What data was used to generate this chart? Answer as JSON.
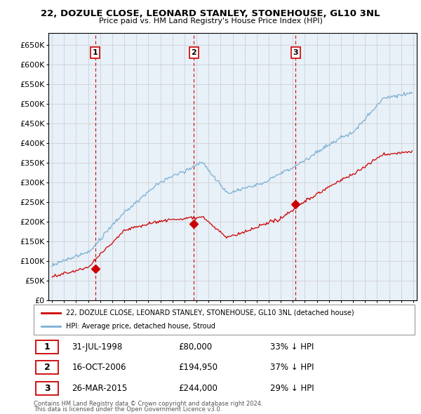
{
  "title": "22, DOZULE CLOSE, LEONARD STANLEY, STONEHOUSE, GL10 3NL",
  "subtitle": "Price paid vs. HM Land Registry's House Price Index (HPI)",
  "hpi_label": "HPI: Average price, detached house, Stroud",
  "property_label": "22, DOZULE CLOSE, LEONARD STANLEY, STONEHOUSE, GL10 3NL (detached house)",
  "footer1": "Contains HM Land Registry data © Crown copyright and database right 2024.",
  "footer2": "This data is licensed under the Open Government Licence v3.0.",
  "transactions": [
    {
      "num": 1,
      "date": "31-JUL-1998",
      "price": "£80,000",
      "pct": "33% ↓ HPI",
      "year": 1998.58
    },
    {
      "num": 2,
      "date": "16-OCT-2006",
      "price": "£194,950",
      "pct": "37% ↓ HPI",
      "year": 2006.79
    },
    {
      "num": 3,
      "date": "26-MAR-2015",
      "price": "£244,000",
      "pct": "29% ↓ HPI",
      "year": 2015.23
    }
  ],
  "yticks": [
    0,
    50000,
    100000,
    150000,
    200000,
    250000,
    300000,
    350000,
    400000,
    450000,
    500000,
    550000,
    600000,
    650000
  ],
  "xlim_start": 1994.7,
  "xlim_end": 2025.3,
  "red_color": "#cc0000",
  "blue_color": "#7ab0d4",
  "grid_color": "#cccccc",
  "bg_color": "#ffffff",
  "plot_bg": "#e8f0f8"
}
